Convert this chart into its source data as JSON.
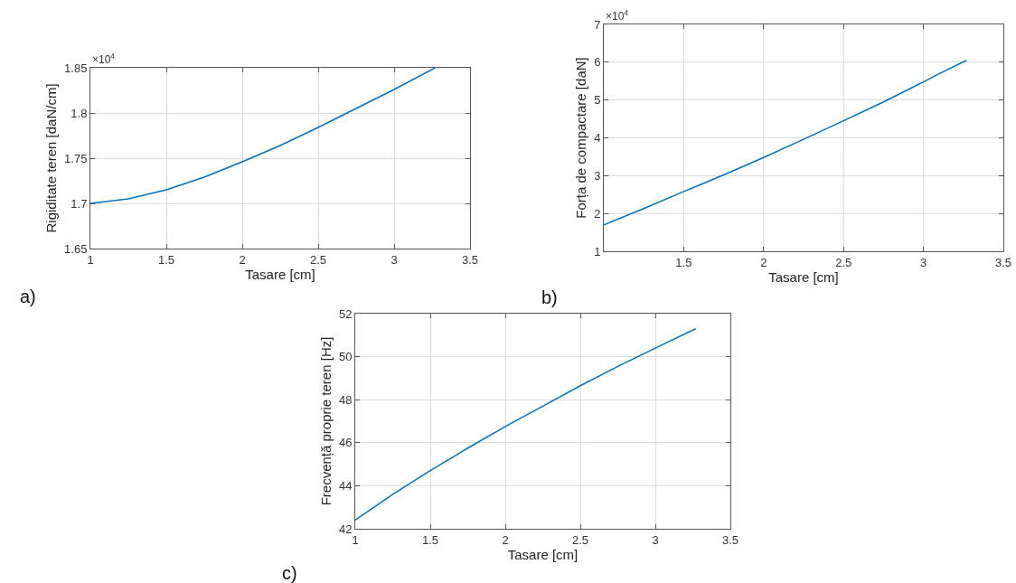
{
  "chart_data": [
    {
      "type": "line",
      "xlabel": "Tasare [cm]",
      "ylabel": "Rigiditate teren [daN/cm]",
      "color": "#0072bd",
      "grid": true,
      "x": [
        1,
        1.25,
        1.5,
        1.75,
        2,
        2.25,
        2.5,
        2.75,
        3,
        3.27
      ],
      "values": [
        1.7,
        1.705,
        1.715,
        1.729,
        1.746,
        1.764,
        1.784,
        1.805,
        1.826,
        1.85
      ],
      "xlim": [
        1,
        3.5
      ],
      "xticks": [
        1,
        1.5,
        2,
        2.5,
        3,
        3.5
      ],
      "ylim": [
        1.65,
        1.85
      ],
      "yticks": [
        1.65,
        1.7,
        1.75,
        1.8,
        1.85
      ],
      "annotations": [
        "×10$^{4}$",
        "a)"
      ]
    },
    {
      "type": "line",
      "xlabel": "Tasare [cm]",
      "ylabel": "Forța de compactare [daN]",
      "color": "#0072bd",
      "grid": true,
      "x": [
        1,
        1.25,
        1.5,
        1.75,
        2,
        2.25,
        2.5,
        2.75,
        3,
        3.1,
        3.27
      ],
      "values": [
        1.7,
        2.13,
        2.58,
        3.02,
        3.48,
        3.96,
        4.45,
        4.95,
        5.48,
        5.7,
        6.05
      ],
      "xlim": [
        1,
        3.5
      ],
      "xticks": [
        1.5,
        2,
        2.5,
        3,
        3.5
      ],
      "ylim": [
        1,
        7
      ],
      "yticks": [
        1,
        2,
        3,
        4,
        5,
        6,
        7
      ],
      "annotations": [
        "×10$^{4}$",
        "b)"
      ]
    },
    {
      "type": "line",
      "xlabel": "Tasare [cm]",
      "ylabel": "Frecvență proprie teren [Hz]",
      "color": "#0072bd",
      "grid": true,
      "x": [
        1,
        1.25,
        1.5,
        1.75,
        2,
        2.25,
        2.5,
        2.75,
        3,
        3.27
      ],
      "values": [
        42.4,
        43.6,
        44.7,
        45.75,
        46.75,
        47.7,
        48.65,
        49.55,
        50.4,
        51.3
      ],
      "xlim": [
        1,
        3.5
      ],
      "xticks": [
        1,
        1.5,
        2,
        2.5,
        3,
        3.5
      ],
      "ylim": [
        42,
        52
      ],
      "yticks": [
        42,
        44,
        46,
        48,
        50,
        52
      ],
      "annotations": [
        "c)"
      ]
    }
  ]
}
